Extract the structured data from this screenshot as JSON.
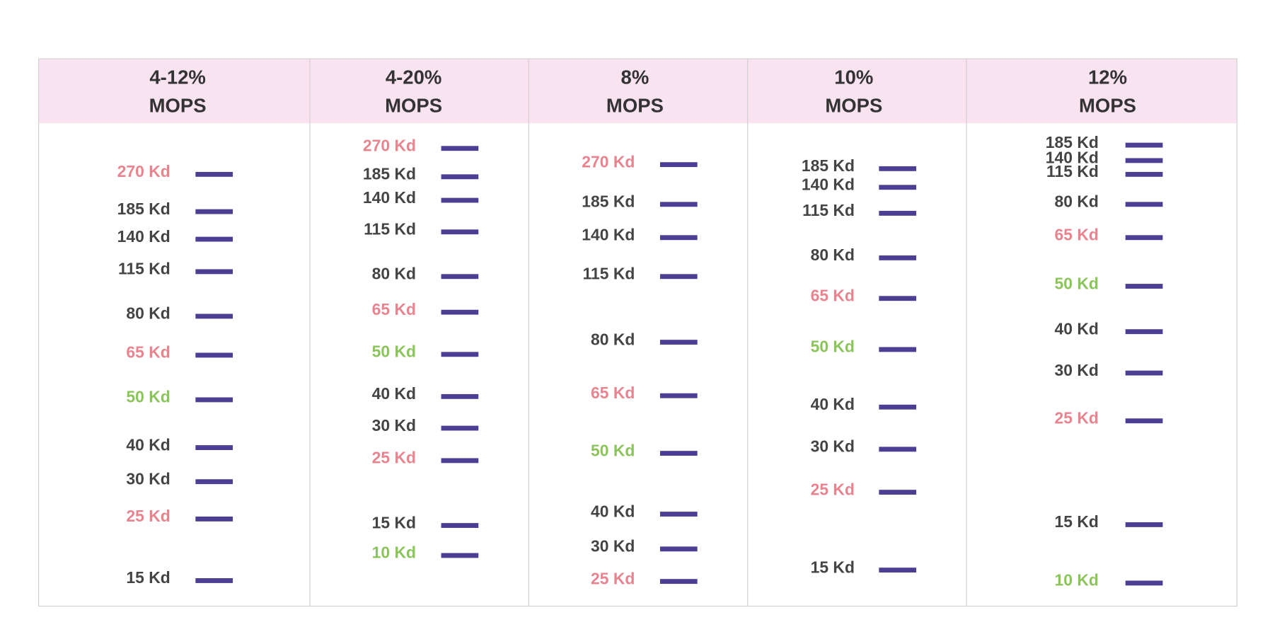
{
  "columns": [
    {
      "header": [
        "4-12%",
        "MOPS"
      ],
      "bands": [
        {
          "label": "270 Kd",
          "color": "#e8848f"
        },
        {
          "label": "185 Kd",
          "color": "#444444"
        },
        {
          "label": "140 Kd",
          "color": "#444444"
        },
        {
          "label": "115 Kd",
          "color": "#444444"
        },
        {
          "label": "80 Kd",
          "color": "#444444"
        },
        {
          "label": "65 Kd",
          "color": "#e8848f"
        },
        {
          "label": "50 Kd",
          "color": "#8cc45c"
        },
        {
          "label": "40 Kd",
          "color": "#444444"
        },
        {
          "label": "30 Kd",
          "color": "#444444"
        },
        {
          "label": "25 Kd",
          "color": "#e8848f"
        },
        {
          "label": "15 Kd",
          "color": "#444444"
        }
      ]
    },
    {
      "header": [
        "4-20%",
        "MOPS"
      ],
      "bands": [
        {
          "label": "270 Kd",
          "color": "#e8848f"
        },
        {
          "label": "185 Kd",
          "color": "#444444"
        },
        {
          "label": "140 Kd",
          "color": "#444444"
        },
        {
          "label": "115 Kd",
          "color": "#444444"
        },
        {
          "label": "80 Kd",
          "color": "#444444"
        },
        {
          "label": "65 Kd",
          "color": "#e8848f"
        },
        {
          "label": "50 Kd",
          "color": "#8cc45c"
        },
        {
          "label": "40 Kd",
          "color": "#444444"
        },
        {
          "label": "30 Kd",
          "color": "#444444"
        },
        {
          "label": "25 Kd",
          "color": "#e8848f"
        },
        {
          "label": "15 Kd",
          "color": "#444444"
        },
        {
          "label": "10 Kd",
          "color": "#8cc45c"
        }
      ]
    },
    {
      "header": [
        "8%",
        "MOPS"
      ],
      "bands": [
        {
          "label": "270 Kd",
          "color": "#e8848f"
        },
        {
          "label": "185 Kd",
          "color": "#444444"
        },
        {
          "label": "140 Kd",
          "color": "#444444"
        },
        {
          "label": "115 Kd",
          "color": "#444444"
        },
        {
          "label": "80 Kd",
          "color": "#444444"
        },
        {
          "label": "65 Kd",
          "color": "#e8848f"
        },
        {
          "label": "50 Kd",
          "color": "#8cc45c"
        },
        {
          "label": "40 Kd",
          "color": "#444444"
        },
        {
          "label": "30 Kd",
          "color": "#444444"
        },
        {
          "label": "25 Kd",
          "color": "#e8848f"
        }
      ]
    },
    {
      "header": [
        "10%",
        "MOPS"
      ],
      "bands": [
        {
          "label": "185 Kd",
          "color": "#444444"
        },
        {
          "label": "140 Kd",
          "color": "#444444"
        },
        {
          "label": "115 Kd",
          "color": "#444444"
        },
        {
          "label": "80 Kd",
          "color": "#444444"
        },
        {
          "label": "65 Kd",
          "color": "#e8848f"
        },
        {
          "label": "50 Kd",
          "color": "#8cc45c"
        },
        {
          "label": "40 Kd",
          "color": "#444444"
        },
        {
          "label": "30 Kd",
          "color": "#444444"
        },
        {
          "label": "25 Kd",
          "color": "#e8848f"
        },
        {
          "label": "15 Kd",
          "color": "#444444"
        }
      ]
    },
    {
      "header": [
        "12%",
        "MOPS"
      ],
      "bands": [
        {
          "label": "185 Kd",
          "color": "#444444"
        },
        {
          "label": "140 Kd",
          "color": "#444444"
        },
        {
          "label": "115 Kd",
          "color": "#444444"
        },
        {
          "label": "80 Kd",
          "color": "#444444"
        },
        {
          "label": "65 Kd",
          "color": "#e8848f"
        },
        {
          "label": "50 Kd",
          "color": "#8cc45c"
        },
        {
          "label": "40 Kd",
          "color": "#444444"
        },
        {
          "label": "30 Kd",
          "color": "#444444"
        },
        {
          "label": "25 Kd",
          "color": "#e8848f"
        },
        {
          "label": "15 Kd",
          "color": "#444444"
        },
        {
          "label": "10 Kd",
          "color": "#8cc45c"
        }
      ]
    }
  ]
}
